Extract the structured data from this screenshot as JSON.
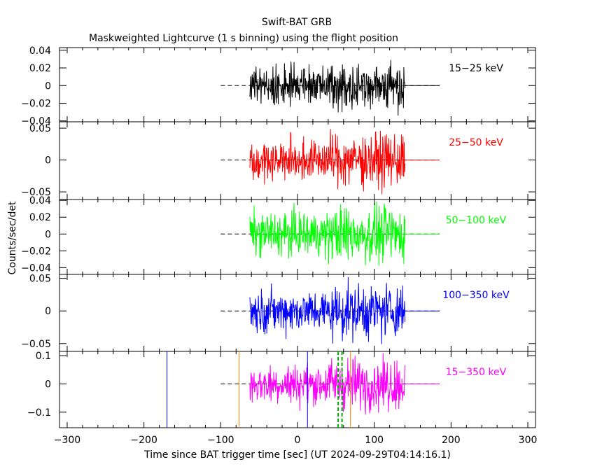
{
  "chart_data": {
    "type": "line",
    "title": "Swift-BAT GRB",
    "subtitle": "Maskweighted Lightcurve (1 s binning) using the flight position",
    "xlabel": "Time since BAT trigger time [sec] (UT 2024-09-29T04:14:16.1)",
    "ylabel": "Counts/sec/det",
    "xlim": [
      -310,
      310
    ],
    "xticks": [
      -300,
      -200,
      -100,
      0,
      100,
      200,
      300
    ],
    "data_range": [
      -62,
      140
    ],
    "dashed_range": [
      -100,
      185
    ],
    "panels": [
      {
        "name": "15-25 keV",
        "label": "15−25 keV",
        "color": "#000000",
        "ylim": [
          -0.041,
          0.043
        ],
        "yticks": [
          -0.04,
          -0.02,
          0,
          0.02,
          0.04
        ],
        "yticklabels": [
          "−0.04",
          "−0.02",
          "0",
          "0.02",
          "0.04"
        ],
        "noise": 0.011
      },
      {
        "name": "25-50 keV",
        "label": "25−50 keV",
        "color": "#ff0000",
        "ylim": [
          -0.062,
          0.06
        ],
        "yticks": [
          -0.05,
          0,
          0.05
        ],
        "yticklabels": [
          "−0.05",
          "0",
          "0.05"
        ],
        "noise": 0.016
      },
      {
        "name": "50-100 keV",
        "label": "50−100 keV",
        "color": "#00ff00",
        "ylim": [
          -0.048,
          0.041
        ],
        "yticks": [
          -0.04,
          -0.02,
          0,
          0.02,
          0.04
        ],
        "yticklabels": [
          "−0.04",
          "−0.02",
          "0",
          "0.02",
          "0.04"
        ],
        "noise": 0.013
      },
      {
        "name": "100-350 keV",
        "label": "100−350 keV",
        "color": "#0000ff",
        "ylim": [
          -0.062,
          0.056
        ],
        "yticks": [
          -0.05,
          0,
          0.05
        ],
        "yticklabels": [
          "−0.05",
          "0",
          "0.05"
        ],
        "noise": 0.016
      },
      {
        "name": "15-350 keV",
        "label": "15−350 keV",
        "color": "#ff00ff",
        "ylim": [
          -0.155,
          0.115
        ],
        "yticks": [
          -0.1,
          0,
          0.1
        ],
        "yticklabels": [
          "−0.1",
          "0",
          "0.1"
        ],
        "noise": 0.035
      }
    ],
    "markers": [
      {
        "x": -170,
        "color": "#0000ff",
        "style": "solid"
      },
      {
        "x": -76,
        "color": "#ff8000",
        "style": "solid"
      },
      {
        "x": 13,
        "color": "#0000ff",
        "style": "solid"
      },
      {
        "x": 53,
        "color": "#00aa00",
        "style": "dashed"
      },
      {
        "x": 58,
        "color": "#00aa00",
        "style": "dashed"
      },
      {
        "x": 69,
        "color": "#ff8000",
        "style": "solid"
      }
    ]
  }
}
